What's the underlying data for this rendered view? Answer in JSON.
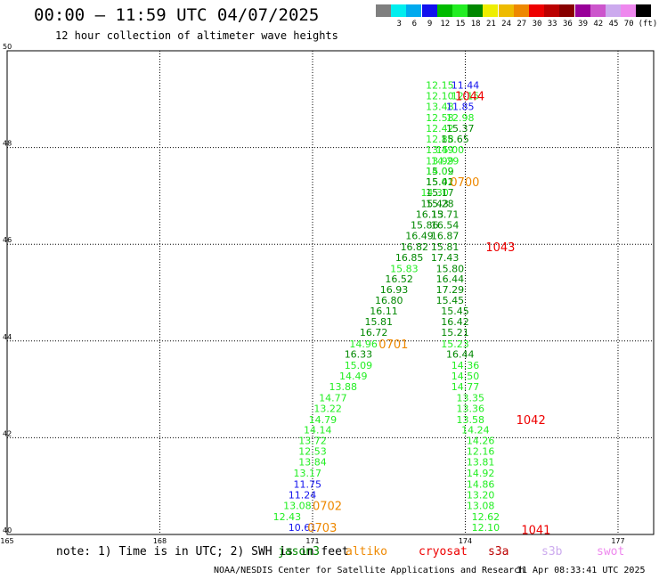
{
  "title": "00:00 – 11:59 UTC 04/07/2025",
  "subtitle": "12 hour collection of altimeter wave heights",
  "legend": {
    "unit": "(ft)",
    "bins": [
      {
        "label": "",
        "color": "#7f7f7f"
      },
      {
        "label": "3",
        "color": "#00eeee"
      },
      {
        "label": "6",
        "color": "#00aaee"
      },
      {
        "label": "9",
        "color": "#1111ee"
      },
      {
        "label": "12",
        "color": "#00bb00"
      },
      {
        "label": "15",
        "color": "#22ee22"
      },
      {
        "label": "18",
        "color": "#008800"
      },
      {
        "label": "21",
        "color": "#eeee00"
      },
      {
        "label": "24",
        "color": "#eebb00"
      },
      {
        "label": "27",
        "color": "#ee8800"
      },
      {
        "label": "30",
        "color": "#ee0000"
      },
      {
        "label": "33",
        "color": "#bb0000"
      },
      {
        "label": "36",
        "color": "#880000"
      },
      {
        "label": "39",
        "color": "#990099"
      },
      {
        "label": "42",
        "color": "#cc55cc"
      },
      {
        "label": "45",
        "color": "#ccaaee"
      },
      {
        "label": "70",
        "color": "#ee88ee"
      },
      {
        "label": "",
        "color": "#000000"
      }
    ]
  },
  "note": "note: 1) Time is in UTC; 2) SWH is in feet",
  "satellites": [
    {
      "name": "jason3",
      "color": "#008800",
      "pos": 312
    },
    {
      "name": "altiko",
      "color": "#ee8800",
      "pos": 388
    },
    {
      "name": "cryosat",
      "color": "#ee0000",
      "pos": 470
    },
    {
      "name": "s3a",
      "color": "#bb0000",
      "pos": 548
    },
    {
      "name": "s3b",
      "color": "#ccaaee",
      "pos": 608
    },
    {
      "name": "swot",
      "color": "#ee88ee",
      "pos": 670
    }
  ],
  "footer": "NOAA/NESDIS Center for Satellite Applications and Research",
  "timestamp": "11 Apr 08:33:41 UTC 2025",
  "chart_data": {
    "type": "scatter",
    "xlim": [
      165,
      177.7
    ],
    "ylim": [
      40,
      50
    ],
    "x_ticks": [
      "165",
      "168",
      "171",
      "174",
      "177"
    ],
    "y_ticks": [
      "40",
      "42",
      "44",
      "46",
      "48",
      "50"
    ],
    "grid": true,
    "left_track": [
      {
        "v": "10.61",
        "c": "#1111ee",
        "lon": 170.8,
        "lat": 40.15
      },
      {
        "v": "12.43",
        "c": "#22ee22",
        "lon": 170.5,
        "lat": 40.37
      },
      {
        "v": "13.08",
        "c": "#22ee22",
        "lon": 170.7,
        "lat": 40.6
      },
      {
        "v": "11.24",
        "c": "#1111ee",
        "lon": 170.8,
        "lat": 40.82
      },
      {
        "v": "11.75",
        "c": "#1111ee",
        "lon": 170.9,
        "lat": 41.04
      },
      {
        "v": "13.17",
        "c": "#22ee22",
        "lon": 170.9,
        "lat": 41.27
      },
      {
        "v": "13.84",
        "c": "#22ee22",
        "lon": 171.0,
        "lat": 41.5
      },
      {
        "v": "12.53",
        "c": "#22ee22",
        "lon": 171.0,
        "lat": 41.72
      },
      {
        "v": "13.72",
        "c": "#22ee22",
        "lon": 171.0,
        "lat": 41.94
      },
      {
        "v": "14.14",
        "c": "#22ee22",
        "lon": 171.1,
        "lat": 42.16
      },
      {
        "v": "14.79",
        "c": "#22ee22",
        "lon": 171.2,
        "lat": 42.38
      },
      {
        "v": "13.22",
        "c": "#22ee22",
        "lon": 171.3,
        "lat": 42.61
      },
      {
        "v": "14.77",
        "c": "#22ee22",
        "lon": 171.4,
        "lat": 42.83
      },
      {
        "v": "13.88",
        "c": "#22ee22",
        "lon": 171.6,
        "lat": 43.06
      },
      {
        "v": "14.49",
        "c": "#22ee22",
        "lon": 171.8,
        "lat": 43.28
      },
      {
        "v": "15.09",
        "c": "#22ee22",
        "lon": 171.9,
        "lat": 43.5
      },
      {
        "v": "16.33",
        "c": "#008800",
        "lon": 171.9,
        "lat": 43.73
      },
      {
        "v": "14.96",
        "c": "#22ee22",
        "lon": 172.0,
        "lat": 43.94
      },
      {
        "v": "16.72",
        "c": "#008800",
        "lon": 172.2,
        "lat": 44.18
      },
      {
        "v": "15.81",
        "c": "#008800",
        "lon": 172.3,
        "lat": 44.4
      },
      {
        "v": "16.11",
        "c": "#008800",
        "lon": 172.4,
        "lat": 44.62
      },
      {
        "v": "16.80",
        "c": "#008800",
        "lon": 172.5,
        "lat": 44.84
      },
      {
        "v": "16.93",
        "c": "#008800",
        "lon": 172.6,
        "lat": 45.06
      },
      {
        "v": "16.52",
        "c": "#008800",
        "lon": 172.7,
        "lat": 45.29
      },
      {
        "v": "15.83",
        "c": "#22ee22",
        "lon": 172.8,
        "lat": 45.5
      },
      {
        "v": "16.85",
        "c": "#008800",
        "lon": 172.9,
        "lat": 45.73
      },
      {
        "v": "16.82",
        "c": "#008800",
        "lon": 173.0,
        "lat": 45.95
      },
      {
        "v": "16.49",
        "c": "#008800",
        "lon": 173.1,
        "lat": 46.18
      },
      {
        "v": "15.86",
        "c": "#008800",
        "lon": 173.2,
        "lat": 46.4
      },
      {
        "v": "16.13",
        "c": "#008800",
        "lon": 173.3,
        "lat": 46.62
      },
      {
        "v": "15.43",
        "c": "#008800",
        "lon": 173.4,
        "lat": 46.84
      },
      {
        "v": "14.30",
        "c": "#22ee22",
        "lon": 173.4,
        "lat": 47.07
      },
      {
        "v": "15.02",
        "c": "#22ee22",
        "lon": 173.5,
        "lat": 47.29
      },
      {
        "v": "15.09",
        "c": "#008800",
        "lon": 173.5,
        "lat": 47.51
      },
      {
        "v": "13.99",
        "c": "#22ee22",
        "lon": 173.5,
        "lat": 47.73
      },
      {
        "v": "13.49",
        "c": "#22ee22",
        "lon": 173.5,
        "lat": 47.96
      },
      {
        "v": "12.88",
        "c": "#22ee22",
        "lon": 173.5,
        "lat": 48.18
      },
      {
        "v": "12.42",
        "c": "#22ee22",
        "lon": 173.5,
        "lat": 48.4
      },
      {
        "v": "12.58",
        "c": "#22ee22",
        "lon": 173.5,
        "lat": 48.62
      },
      {
        "v": "13.48",
        "c": "#22ee22",
        "lon": 173.5,
        "lat": 48.85
      },
      {
        "v": "12.10",
        "c": "#22ee22",
        "lon": 173.5,
        "lat": 49.07
      },
      {
        "v": "12.15",
        "c": "#22ee22",
        "lon": 173.5,
        "lat": 49.29
      }
    ],
    "right_track": [
      {
        "v": "12.10",
        "c": "#22ee22",
        "lon": 174.4,
        "lat": 40.15
      },
      {
        "v": "12.62",
        "c": "#22ee22",
        "lon": 174.4,
        "lat": 40.37
      },
      {
        "v": "13.08",
        "c": "#22ee22",
        "lon": 174.3,
        "lat": 40.6
      },
      {
        "v": "13.20",
        "c": "#22ee22",
        "lon": 174.3,
        "lat": 40.82
      },
      {
        "v": "14.86",
        "c": "#22ee22",
        "lon": 174.3,
        "lat": 41.04
      },
      {
        "v": "14.92",
        "c": "#22ee22",
        "lon": 174.3,
        "lat": 41.27
      },
      {
        "v": "13.81",
        "c": "#22ee22",
        "lon": 174.3,
        "lat": 41.5
      },
      {
        "v": "12.16",
        "c": "#22ee22",
        "lon": 174.3,
        "lat": 41.72
      },
      {
        "v": "14.26",
        "c": "#22ee22",
        "lon": 174.3,
        "lat": 41.94
      },
      {
        "v": "14.24",
        "c": "#22ee22",
        "lon": 174.2,
        "lat": 42.16
      },
      {
        "v": "13.58",
        "c": "#22ee22",
        "lon": 174.1,
        "lat": 42.38
      },
      {
        "v": "13.36",
        "c": "#22ee22",
        "lon": 174.1,
        "lat": 42.61
      },
      {
        "v": "13.35",
        "c": "#22ee22",
        "lon": 174.1,
        "lat": 42.83
      },
      {
        "v": "14.77",
        "c": "#22ee22",
        "lon": 174.0,
        "lat": 43.06
      },
      {
        "v": "14.50",
        "c": "#22ee22",
        "lon": 174.0,
        "lat": 43.28
      },
      {
        "v": "14.36",
        "c": "#22ee22",
        "lon": 174.0,
        "lat": 43.5
      },
      {
        "v": "16.44",
        "c": "#008800",
        "lon": 173.9,
        "lat": 43.73
      },
      {
        "v": "15.23",
        "c": "#22ee22",
        "lon": 173.8,
        "lat": 43.94
      },
      {
        "v": "15.21",
        "c": "#008800",
        "lon": 173.8,
        "lat": 44.18
      },
      {
        "v": "16.42",
        "c": "#008800",
        "lon": 173.8,
        "lat": 44.4
      },
      {
        "v": "15.45",
        "c": "#008800",
        "lon": 173.8,
        "lat": 44.62
      },
      {
        "v": "15.45",
        "c": "#008800",
        "lon": 173.7,
        "lat": 44.84
      },
      {
        "v": "17.29",
        "c": "#008800",
        "lon": 173.7,
        "lat": 45.06
      },
      {
        "v": "16.44",
        "c": "#008800",
        "lon": 173.7,
        "lat": 45.29
      },
      {
        "v": "15.80",
        "c": "#008800",
        "lon": 173.7,
        "lat": 45.5
      },
      {
        "v": "17.43",
        "c": "#008800",
        "lon": 173.6,
        "lat": 45.73
      },
      {
        "v": "15.81",
        "c": "#008800",
        "lon": 173.6,
        "lat": 45.95
      },
      {
        "v": "16.87",
        "c": "#008800",
        "lon": 173.6,
        "lat": 46.18
      },
      {
        "v": "16.54",
        "c": "#008800",
        "lon": 173.6,
        "lat": 46.4
      },
      {
        "v": "15.71",
        "c": "#008800",
        "lon": 173.6,
        "lat": 46.62
      },
      {
        "v": "15.28",
        "c": "#008800",
        "lon": 173.5,
        "lat": 46.84
      },
      {
        "v": "15.17",
        "c": "#008800",
        "lon": 173.5,
        "lat": 47.07
      },
      {
        "v": "15.41",
        "c": "#008800",
        "lon": 173.5,
        "lat": 47.29
      },
      {
        "v": "14.02",
        "c": "#22ee22",
        "lon": 173.5,
        "lat": 47.51
      },
      {
        "v": "14.29",
        "c": "#22ee22",
        "lon": 173.6,
        "lat": 47.73
      },
      {
        "v": "15.00",
        "c": "#22ee22",
        "lon": 173.7,
        "lat": 47.96
      },
      {
        "v": "15.65",
        "c": "#008800",
        "lon": 173.8,
        "lat": 48.18
      },
      {
        "v": "15.37",
        "c": "#008800",
        "lon": 173.9,
        "lat": 48.4
      },
      {
        "v": "12.98",
        "c": "#22ee22",
        "lon": 173.9,
        "lat": 48.62
      },
      {
        "v": "11.85",
        "c": "#1111ee",
        "lon": 173.9,
        "lat": 48.85
      },
      {
        "v": "12.15",
        "c": "#22ee22",
        "lon": 174.0,
        "lat": 49.07
      },
      {
        "v": "11.44",
        "c": "#1111ee",
        "lon": 174.0,
        "lat": 49.29
      }
    ],
    "pass_times": [
      {
        "text": "1044",
        "color": "#ee0000",
        "lon": 173.8,
        "lat": 49.07
      },
      {
        "text": "0700",
        "color": "#ee8800",
        "lon": 173.7,
        "lat": 47.29
      },
      {
        "text": "1043",
        "color": "#ee0000",
        "lon": 174.4,
        "lat": 45.95
      },
      {
        "text": "0701",
        "color": "#ee8800",
        "lon": 172.3,
        "lat": 43.94
      },
      {
        "text": "1042",
        "color": "#ee0000",
        "lon": 175.0,
        "lat": 42.38
      },
      {
        "text": "0702",
        "color": "#ee8800",
        "lon": 171.0,
        "lat": 40.6
      },
      {
        "text": "0703",
        "color": "#ee8800",
        "lon": 170.9,
        "lat": 40.15
      },
      {
        "text": "1041",
        "color": "#ee0000",
        "lon": 175.1,
        "lat": 40.1
      }
    ]
  }
}
